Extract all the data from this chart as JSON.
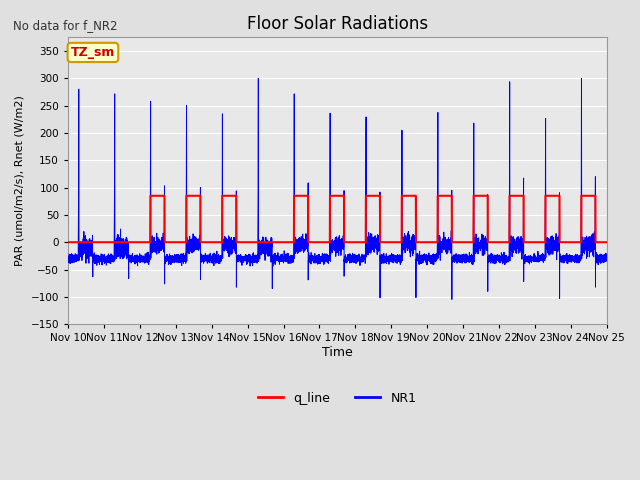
{
  "title": "Floor Solar Radiations",
  "subtitle": "No data for f_NR2",
  "xlabel": "Time",
  "ylabel": "PAR (umol/m2/s), Rnet (W/m2)",
  "ylim": [
    -150,
    375
  ],
  "yticks": [
    -150,
    -100,
    -50,
    0,
    50,
    100,
    150,
    200,
    250,
    300,
    350
  ],
  "xtick_labels": [
    "Nov 10",
    "Nov 11",
    "Nov 12",
    "Nov 13",
    "Nov 14",
    "Nov 15",
    "Nov 16",
    "Nov 17",
    "Nov 18",
    "Nov 19",
    "Nov 20",
    "Nov 21",
    "Nov 22",
    "Nov 23",
    "Nov 24",
    "Nov 25"
  ],
  "legend_labels": [
    "q_line",
    "NR1"
  ],
  "legend_colors": [
    "#ff0000",
    "#0000ff"
  ],
  "background_color": "#e0e0e0",
  "plot_bg_color": "#e8e8e8",
  "annotation_text": "TZ_sm",
  "annotation_bg": "#ffffcc",
  "annotation_border": "#cc9900",
  "annotation_text_color": "#cc0000",
  "num_days": 15,
  "q_line_peak": 85,
  "nr1_night_base": -30,
  "points_per_day": 480,
  "figwidth": 6.4,
  "figheight": 4.8,
  "dpi": 100
}
